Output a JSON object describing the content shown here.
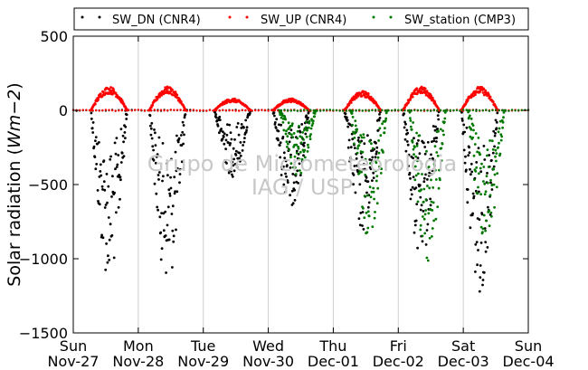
{
  "chart_data": {
    "type": "scatter",
    "ylabel": "Solar radiation (Wm−2)",
    "ylabel_unit": "Wm−2",
    "ylabel_text": "Solar radiation",
    "ylim": [
      -1500,
      500
    ],
    "y_ticks": [
      "500",
      "0",
      "−500",
      "−1000",
      "−1500"
    ],
    "y_tick_values": [
      500,
      0,
      -500,
      -1000,
      -1500
    ],
    "x_ticks": [
      {
        "day": "Sun",
        "date": "Nov-27"
      },
      {
        "day": "Mon",
        "date": "Nov-28"
      },
      {
        "day": "Tue",
        "date": "Nov-29"
      },
      {
        "day": "Wed",
        "date": "Nov-30"
      },
      {
        "day": "Thu",
        "date": "Dec-01"
      },
      {
        "day": "Fri",
        "date": "Dec-02"
      },
      {
        "day": "Sat",
        "date": "Dec-03"
      },
      {
        "day": "Sun",
        "date": "Dec-04"
      }
    ],
    "grid": "vertical",
    "legend_position": "top",
    "watermark": [
      "Grupo de Micrometeorologia",
      "IAG / USP"
    ],
    "series": [
      {
        "name": "SW_DN (CNR4)",
        "color": "#000000",
        "daily_min": [
          -1150,
          -1180,
          -450,
          -650,
          -830,
          -1020,
          -1230
        ],
        "noon_offset": [
          0.55,
          0.45,
          0.45,
          0.35,
          0.45,
          0.35,
          0.25
        ]
      },
      {
        "name": "SW_UP (CNR4)",
        "color": "#ff0000",
        "daily_max": [
          160,
          160,
          80,
          80,
          130,
          160,
          160
        ],
        "noon_offset": [
          0.55,
          0.45,
          0.45,
          0.35,
          0.45,
          0.35,
          0.25
        ]
      },
      {
        "name": "SW_station (CMP3)",
        "color": "#007700",
        "daily_min": [
          0,
          0,
          0,
          -450,
          -860,
          -1060,
          -900
        ],
        "noon_offset": [
          0,
          0,
          0,
          0.45,
          0.55,
          0.45,
          0.35
        ]
      }
    ]
  }
}
